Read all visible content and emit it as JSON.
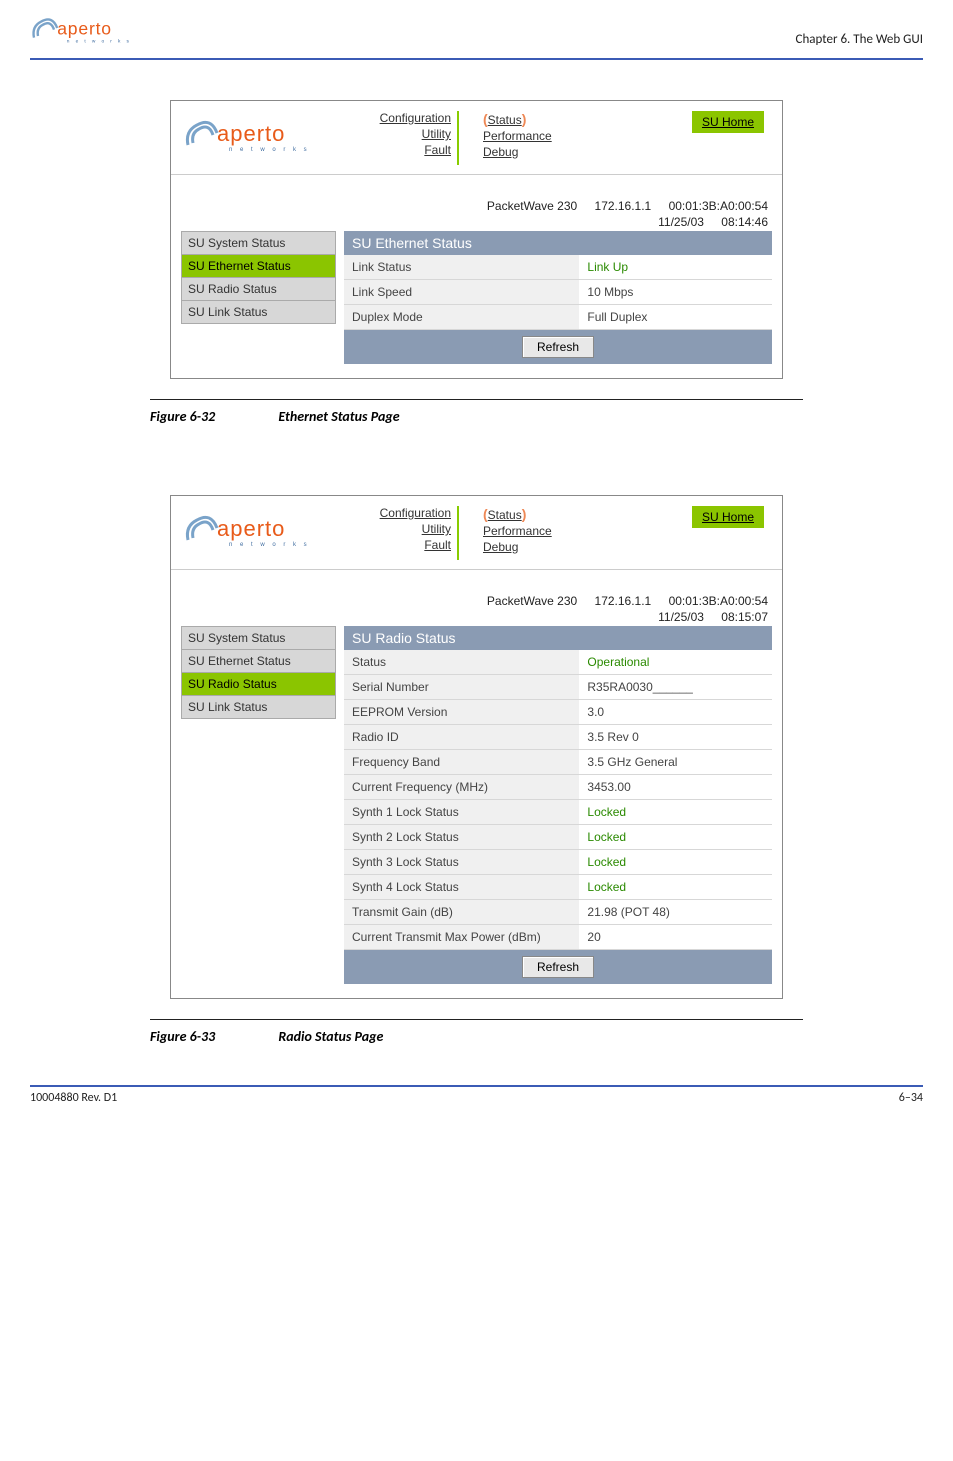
{
  "page": {
    "chapter": "Chapter 6.  The Web GUI",
    "footer_left": "10004880 Rev. D1",
    "footer_right": "6–34"
  },
  "logo": {
    "brand": "aperto",
    "sub": "n  e  t  w  o  r  k  s"
  },
  "nav": {
    "left": [
      "Configuration",
      "Utility",
      "Fault"
    ],
    "right": [
      "Status",
      "Performance",
      "Debug"
    ],
    "home": "SU Home"
  },
  "sidebar": {
    "items": [
      "SU System Status",
      "SU Ethernet Status",
      "SU Radio Status",
      "SU Link Status"
    ]
  },
  "fig1": {
    "selected_index": 1,
    "device_model": "PacketWave 230",
    "device_ip": "172.16.1.1",
    "device_mac": "00:01:3B:A0:00:54",
    "date": "11/25/03",
    "time": "08:14:46",
    "panel_title": "SU Ethernet Status",
    "rows": [
      {
        "label": "Link Status",
        "value": "Link Up",
        "color": "#2a8a00"
      },
      {
        "label": "Link Speed",
        "value": "10 Mbps",
        "color": "#444"
      },
      {
        "label": "Duplex Mode",
        "value": "Full Duplex",
        "color": "#444"
      }
    ],
    "refresh": "Refresh",
    "caption_num": "Figure 6-32",
    "caption_title": "Ethernet Status Page"
  },
  "fig2": {
    "selected_index": 2,
    "device_model": "PacketWave 230",
    "device_ip": "172.16.1.1",
    "device_mac": "00:01:3B:A0:00:54",
    "date": "11/25/03",
    "time": "08:15:07",
    "panel_title": "SU Radio Status",
    "rows": [
      {
        "label": "Status",
        "value": "Operational",
        "color": "#2a8a00"
      },
      {
        "label": "Serial Number",
        "value": "R35RA0030______",
        "color": "#444"
      },
      {
        "label": "EEPROM Version",
        "value": "3.0",
        "color": "#444"
      },
      {
        "label": "Radio ID",
        "value": "3.5 Rev 0",
        "color": "#444"
      },
      {
        "label": "Frequency Band",
        "value": "3.5 GHz General",
        "color": "#444"
      },
      {
        "label": "Current Frequency (MHz)",
        "value": "3453.00",
        "color": "#444"
      },
      {
        "label": "Synth 1 Lock Status",
        "value": "Locked",
        "color": "#2a8a00"
      },
      {
        "label": "Synth 2 Lock Status",
        "value": "Locked",
        "color": "#2a8a00"
      },
      {
        "label": "Synth 3 Lock Status",
        "value": "Locked",
        "color": "#2a8a00"
      },
      {
        "label": "Synth 4 Lock Status",
        "value": "Locked",
        "color": "#2a8a00"
      },
      {
        "label": "Transmit Gain (dB)",
        "value": "21.98 (POT 48)",
        "color": "#444"
      },
      {
        "label": "Current Transmit Max Power (dBm)",
        "value": "20",
        "color": "#444"
      }
    ],
    "refresh": "Refresh",
    "caption_num": "Figure 6-33",
    "caption_title": "Radio Status Page"
  }
}
